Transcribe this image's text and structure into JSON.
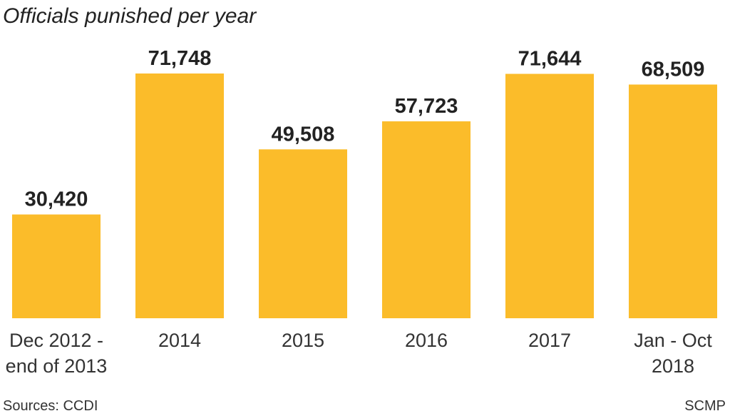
{
  "chart_data": {
    "type": "bar",
    "title": "Officials punished per year",
    "categories": [
      [
        "Dec 2012 -",
        "end of 2013"
      ],
      [
        "2014"
      ],
      [
        "2015"
      ],
      [
        "2016"
      ],
      [
        "2017"
      ],
      [
        "Jan - Oct",
        "2018"
      ]
    ],
    "values": [
      30420,
      71748,
      49508,
      57723,
      71644,
      68509
    ],
    "value_labels": [
      "30,420",
      "71,748",
      "49,508",
      "57,723",
      "71,644",
      "68,509"
    ],
    "color": "#fbbc2a",
    "source": "Sources: CCDI",
    "credit": "SCMP"
  }
}
